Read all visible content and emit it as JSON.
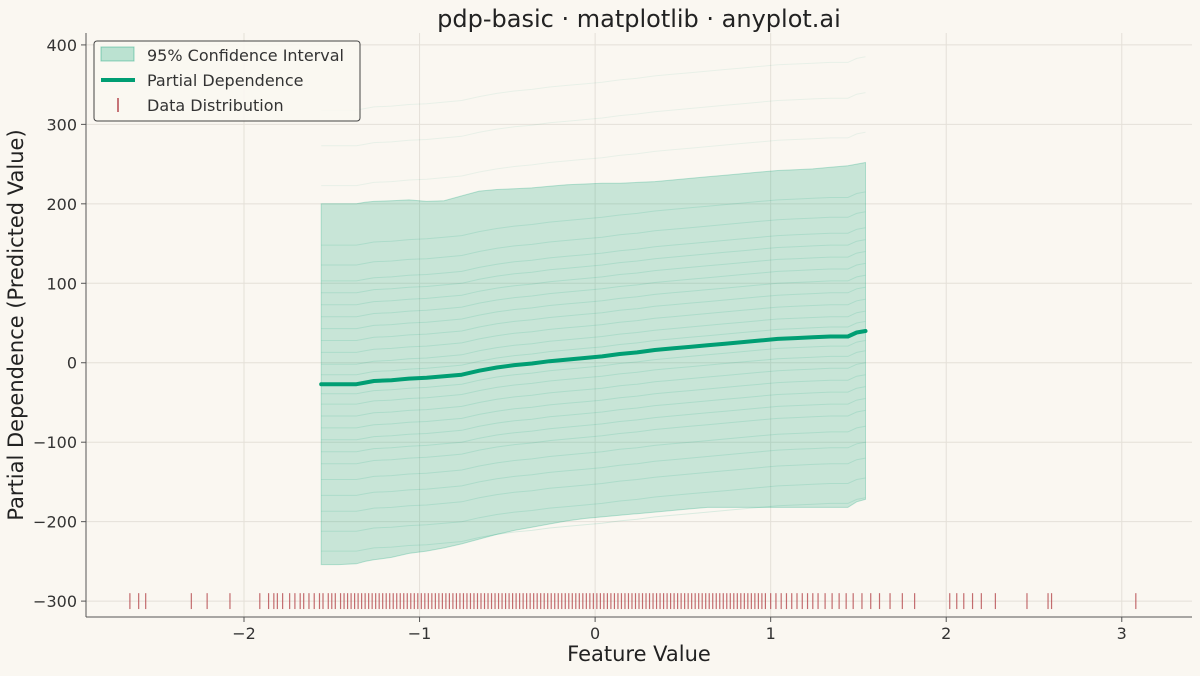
{
  "chart_data": {
    "type": "line",
    "title": "pdp-basic · matplotlib · anyplot.ai",
    "xlabel": "Feature Value",
    "ylabel": "Partial Dependence (Predicted Value)",
    "xlim": [
      -2.9,
      3.4
    ],
    "ylim": [
      -320,
      415
    ],
    "xticks": [
      -2,
      -1,
      0,
      1,
      2,
      3
    ],
    "xtick_labels": [
      "−2",
      "−1",
      "0",
      "1",
      "2",
      "3"
    ],
    "yticks": [
      -300,
      -200,
      -100,
      0,
      100,
      200,
      300,
      400
    ],
    "ytick_labels": [
      "−300",
      "−200",
      "−100",
      "0",
      "100",
      "200",
      "300",
      "400"
    ],
    "grid": true,
    "legend": {
      "placement": "top-left",
      "entries": [
        "95% Confidence Interval",
        "Partial Dependence",
        "Data Distribution"
      ]
    },
    "colors": {
      "background": "#FAF7F1",
      "line": "#009E73",
      "band": "#009E73",
      "rug": "#B5484E",
      "grid": "#E4E0D8",
      "axis": "#555555"
    },
    "x": [
      -1.56,
      -1.46,
      -1.36,
      -1.31,
      -1.26,
      -1.16,
      -1.06,
      -0.96,
      -0.86,
      -0.76,
      -0.66,
      -0.56,
      -0.46,
      -0.36,
      -0.26,
      -0.16,
      -0.06,
      0.04,
      0.14,
      0.24,
      0.34,
      0.44,
      0.54,
      0.64,
      0.74,
      0.84,
      0.94,
      1.04,
      1.14,
      1.24,
      1.34,
      1.44,
      1.49,
      1.54
    ],
    "series": [
      {
        "name": "Partial Dependence",
        "values": [
          -27,
          -27,
          -27,
          -25,
          -23,
          -22,
          -20,
          -19,
          -17,
          -15,
          -10,
          -6,
          -3,
          -1,
          2,
          4,
          6,
          8,
          11,
          13,
          16,
          18,
          20,
          22,
          24,
          26,
          28,
          30,
          31,
          32,
          33,
          33,
          38,
          40
        ]
      },
      {
        "name": "95% Confidence Interval",
        "upper": [
          200,
          200,
          200,
          202,
          203,
          204,
          205,
          203,
          204,
          210,
          216,
          218,
          219,
          220,
          222,
          224,
          225,
          226,
          226,
          227,
          228,
          230,
          232,
          234,
          236,
          238,
          240,
          242,
          243,
          244,
          246,
          248,
          250,
          252
        ],
        "lower": [
          -254,
          -254,
          -253,
          -250,
          -248,
          -245,
          -240,
          -237,
          -233,
          -228,
          -222,
          -216,
          -211,
          -207,
          -203,
          -199,
          -196,
          -194,
          -192,
          -190,
          -188,
          -186,
          -184,
          -182,
          -182,
          -182,
          -182,
          -182,
          -182,
          -182,
          -182,
          -182,
          -175,
          -172
        ]
      }
    ],
    "ice_offsets": [
      -210,
      -185,
      -160,
      -140,
      -120,
      -100,
      -85,
      -70,
      -55,
      -40,
      -25,
      -12,
      0,
      12,
      25,
      40,
      55,
      70,
      85,
      100,
      115,
      130,
      150,
      175
    ],
    "ice_faint_offsets": [
      250,
      300,
      345
    ],
    "rug_x": [
      -2.65,
      -2.6,
      -2.56,
      -2.3,
      -2.21,
      -2.08,
      -1.91,
      -1.86,
      -1.83,
      -1.81,
      -1.78,
      -1.74,
      -1.71,
      -1.68,
      -1.66,
      -1.63,
      -1.6,
      -1.57,
      -1.55,
      -1.52,
      -1.5,
      -1.48,
      -1.45,
      -1.43,
      -1.41,
      -1.39,
      -1.37,
      -1.35,
      -1.33,
      -1.31,
      -1.29,
      -1.27,
      -1.25,
      -1.23,
      -1.21,
      -1.19,
      -1.17,
      -1.15,
      -1.13,
      -1.11,
      -1.09,
      -1.07,
      -1.05,
      -1.03,
      -1.01,
      -0.99,
      -0.97,
      -0.95,
      -0.93,
      -0.91,
      -0.89,
      -0.87,
      -0.85,
      -0.83,
      -0.81,
      -0.79,
      -0.77,
      -0.75,
      -0.73,
      -0.71,
      -0.69,
      -0.67,
      -0.65,
      -0.63,
      -0.61,
      -0.59,
      -0.57,
      -0.55,
      -0.53,
      -0.51,
      -0.49,
      -0.47,
      -0.45,
      -0.43,
      -0.41,
      -0.39,
      -0.37,
      -0.35,
      -0.33,
      -0.31,
      -0.29,
      -0.27,
      -0.25,
      -0.23,
      -0.21,
      -0.19,
      -0.17,
      -0.15,
      -0.13,
      -0.11,
      -0.09,
      -0.07,
      -0.05,
      -0.03,
      -0.01,
      0.01,
      0.03,
      0.05,
      0.07,
      0.09,
      0.11,
      0.13,
      0.15,
      0.17,
      0.19,
      0.21,
      0.23,
      0.25,
      0.27,
      0.29,
      0.31,
      0.33,
      0.35,
      0.37,
      0.39,
      0.41,
      0.43,
      0.45,
      0.47,
      0.49,
      0.51,
      0.53,
      0.55,
      0.57,
      0.59,
      0.61,
      0.63,
      0.65,
      0.67,
      0.69,
      0.71,
      0.73,
      0.75,
      0.77,
      0.79,
      0.81,
      0.83,
      0.85,
      0.87,
      0.89,
      0.91,
      0.93,
      0.95,
      0.97,
      1.0,
      1.03,
      1.06,
      1.09,
      1.12,
      1.15,
      1.18,
      1.21,
      1.24,
      1.27,
      1.31,
      1.35,
      1.39,
      1.43,
      1.47,
      1.52,
      1.57,
      1.62,
      1.68,
      1.75,
      1.82,
      2.02,
      2.06,
      2.1,
      2.15,
      2.2,
      2.28,
      2.46,
      2.58,
      2.6,
      3.08
    ]
  }
}
